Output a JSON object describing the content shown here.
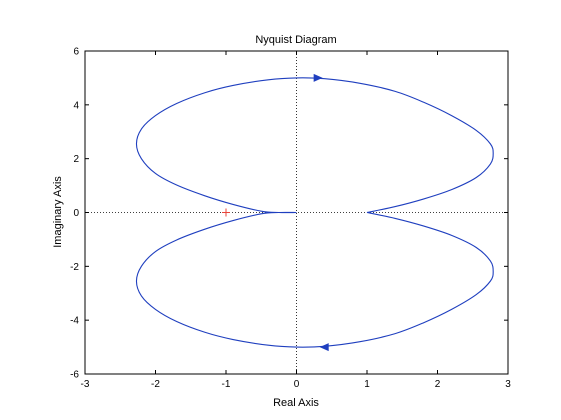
{
  "chart_data": {
    "type": "line",
    "title": "Nyquist Diagram",
    "xlabel": "Real Axis",
    "ylabel": "Imaginary Axis",
    "xlim": [
      -3,
      3
    ],
    "ylim": [
      -6,
      6
    ],
    "xticks": [
      -3,
      -2,
      -1,
      0,
      1,
      2,
      3
    ],
    "yticks": [
      -6,
      -4,
      -2,
      0,
      2,
      4,
      6
    ],
    "grid": false,
    "zero_lines": true,
    "critical_point": {
      "x": -1,
      "y": 0,
      "marker": "+",
      "color": "#e8443a"
    },
    "series": [
      {
        "color": "#1f3fbf",
        "x": [
          0,
          -0.25,
          -0.5,
          -0.9,
          -1.3,
          -1.7,
          -2.0,
          -2.2,
          -2.27,
          -2.2,
          -2.0,
          -1.7,
          -1.3,
          -0.9,
          -0.4,
          0,
          0.4,
          0.9,
          1.4,
          1.8,
          2.2,
          2.55,
          2.75,
          2.79,
          2.75,
          2.55,
          2.2,
          1.8,
          1.4,
          1.0
        ],
        "y": [
          0,
          0,
          0.05,
          0.3,
          0.62,
          1.02,
          1.45,
          2.0,
          2.55,
          3.1,
          3.6,
          4.05,
          4.45,
          4.72,
          4.93,
          5.0,
          4.97,
          4.8,
          4.5,
          4.1,
          3.6,
          3.05,
          2.55,
          2.2,
          1.8,
          1.3,
          0.85,
          0.5,
          0.22,
          0.0
        ]
      },
      {
        "color": "#1f3fbf",
        "x": [
          0,
          -0.25,
          -0.5,
          -0.9,
          -1.3,
          -1.7,
          -2.0,
          -2.2,
          -2.27,
          -2.2,
          -2.0,
          -1.7,
          -1.3,
          -0.9,
          -0.4,
          0,
          0.4,
          0.9,
          1.4,
          1.8,
          2.2,
          2.55,
          2.75,
          2.79,
          2.75,
          2.55,
          2.2,
          1.8,
          1.4,
          1.0
        ],
        "y": [
          0,
          0,
          -0.05,
          -0.3,
          -0.62,
          -1.02,
          -1.45,
          -2.0,
          -2.55,
          -3.1,
          -3.6,
          -4.05,
          -4.45,
          -4.72,
          -4.93,
          -5.0,
          -4.97,
          -4.8,
          -4.5,
          -4.1,
          -3.6,
          -3.05,
          -2.55,
          -2.2,
          -1.8,
          -1.3,
          -0.85,
          -0.5,
          -0.22,
          0.0
        ]
      }
    ],
    "arrows": [
      {
        "x": 0.3,
        "y": 5.0,
        "direction": "right"
      },
      {
        "x": 0.4,
        "y": -5.0,
        "direction": "left"
      }
    ]
  }
}
